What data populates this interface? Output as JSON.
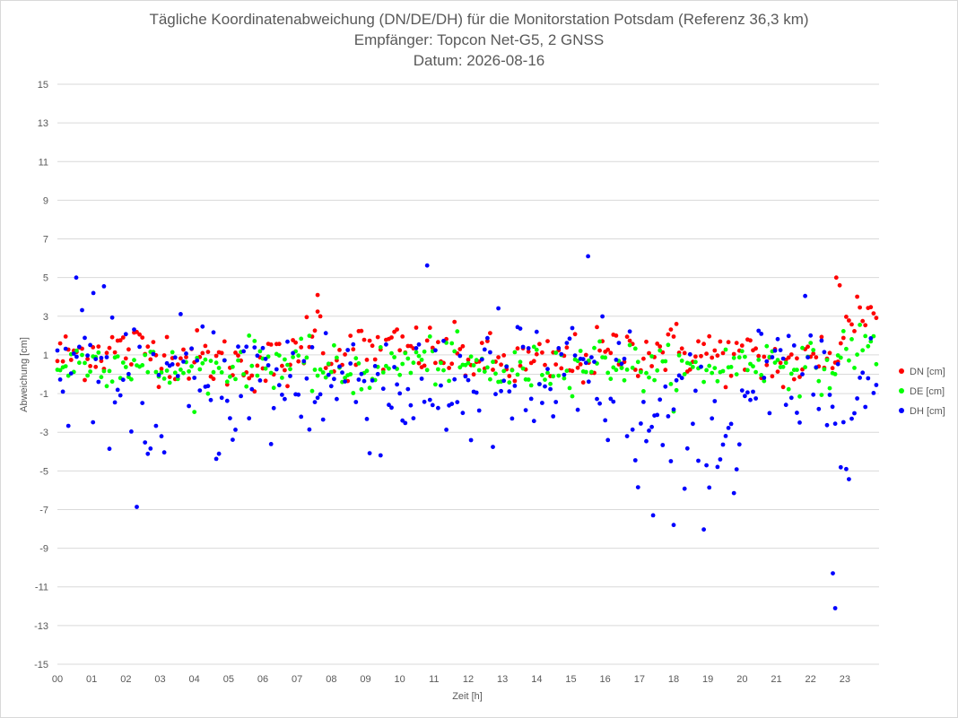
{
  "chart_data": {
    "type": "scatter",
    "title": "Tägliche Koordinatenabweichung (DN/DE/DH) für die Monitorstation Potsdam (Referenz 36,3 km)",
    "subtitle": "Empfänger: Topcon Net-G5, 2 GNSS",
    "date_line": "Datum: 2026-08-16",
    "xlabel": "Zeit [h]",
    "ylabel": "Abweichung [cm]",
    "xlim": [
      0,
      24
    ],
    "ylim": [
      -15,
      15
    ],
    "y_ticks": [
      15,
      13,
      11,
      9,
      7,
      5,
      3,
      1,
      -1,
      -3,
      -5,
      -7,
      -9,
      -11,
      -13,
      -15
    ],
    "x_tick_labels": [
      "00",
      "01",
      "02",
      "03",
      "04",
      "05",
      "06",
      "07",
      "08",
      "09",
      "10",
      "11",
      "12",
      "13",
      "14",
      "15",
      "16",
      "17",
      "18",
      "19",
      "20",
      "21",
      "22",
      "23"
    ],
    "grid": "horizontal",
    "legend_position": "right",
    "series": [
      {
        "name": "DN [cm]",
        "color": "#ff0000"
      },
      {
        "name": "DE [cm]",
        "color": "#00ff00"
      },
      {
        "name": "DH [cm]",
        "color": "#0000ff"
      }
    ],
    "points_per_series": 300,
    "sampling_interval_min": 4.8,
    "noted_outliers": {
      "DH [cm]": [
        [
          0.55,
          5.0
        ],
        [
          1.05,
          4.2
        ],
        [
          15.5,
          6.1
        ],
        [
          22.65,
          -10.3
        ],
        [
          22.72,
          -12.1
        ],
        [
          18.0,
          -7.8
        ],
        [
          17.4,
          -7.3
        ]
      ],
      "DN [cm]": [
        [
          22.75,
          5.0
        ],
        [
          22.85,
          4.6
        ],
        [
          7.6,
          4.1
        ]
      ]
    }
  }
}
